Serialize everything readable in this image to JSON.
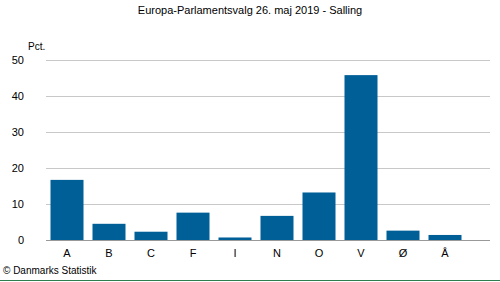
{
  "chart_data": {
    "type": "bar",
    "title": "Europa-Parlamentsvalg 26. maj 2019 - Salling",
    "y_label": "Pct.",
    "source": "© Danmarks Statistik",
    "categories": [
      "A",
      "B",
      "C",
      "F",
      "I",
      "N",
      "O",
      "V",
      "Ø",
      "Å"
    ],
    "values": [
      16.7,
      4.5,
      2.3,
      7.6,
      0.7,
      6.7,
      13.2,
      45.8,
      2.6,
      1.4
    ],
    "color": "#005f97",
    "ylim": [
      0,
      50
    ],
    "yticks": [
      0,
      10,
      20,
      30,
      40,
      50
    ],
    "grid": true
  }
}
